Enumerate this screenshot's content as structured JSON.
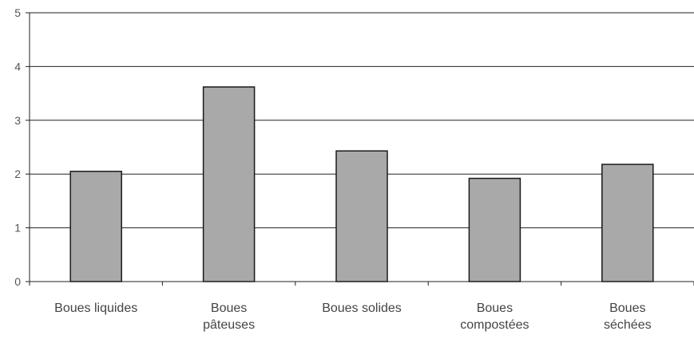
{
  "chart_data": {
    "type": "bar",
    "title": "",
    "xlabel": "",
    "ylabel": "",
    "categories": [
      [
        "Boues liquides"
      ],
      [
        "Boues",
        "pâteuses"
      ],
      [
        "Boues solides"
      ],
      [
        "Boues",
        "compostées"
      ],
      [
        "Boues",
        "séchées"
      ]
    ],
    "values": [
      2.05,
      3.62,
      2.43,
      1.92,
      2.18
    ],
    "ylim": [
      0,
      5
    ],
    "yticks": [
      "0",
      "1",
      "2",
      "3",
      "4",
      "5"
    ],
    "grid": true,
    "legend": "none",
    "colors": {
      "bar_fill": "#a9a9a9",
      "bar_stroke": "#1a1a1a",
      "axis": "#222222",
      "grid": "#222222"
    }
  }
}
